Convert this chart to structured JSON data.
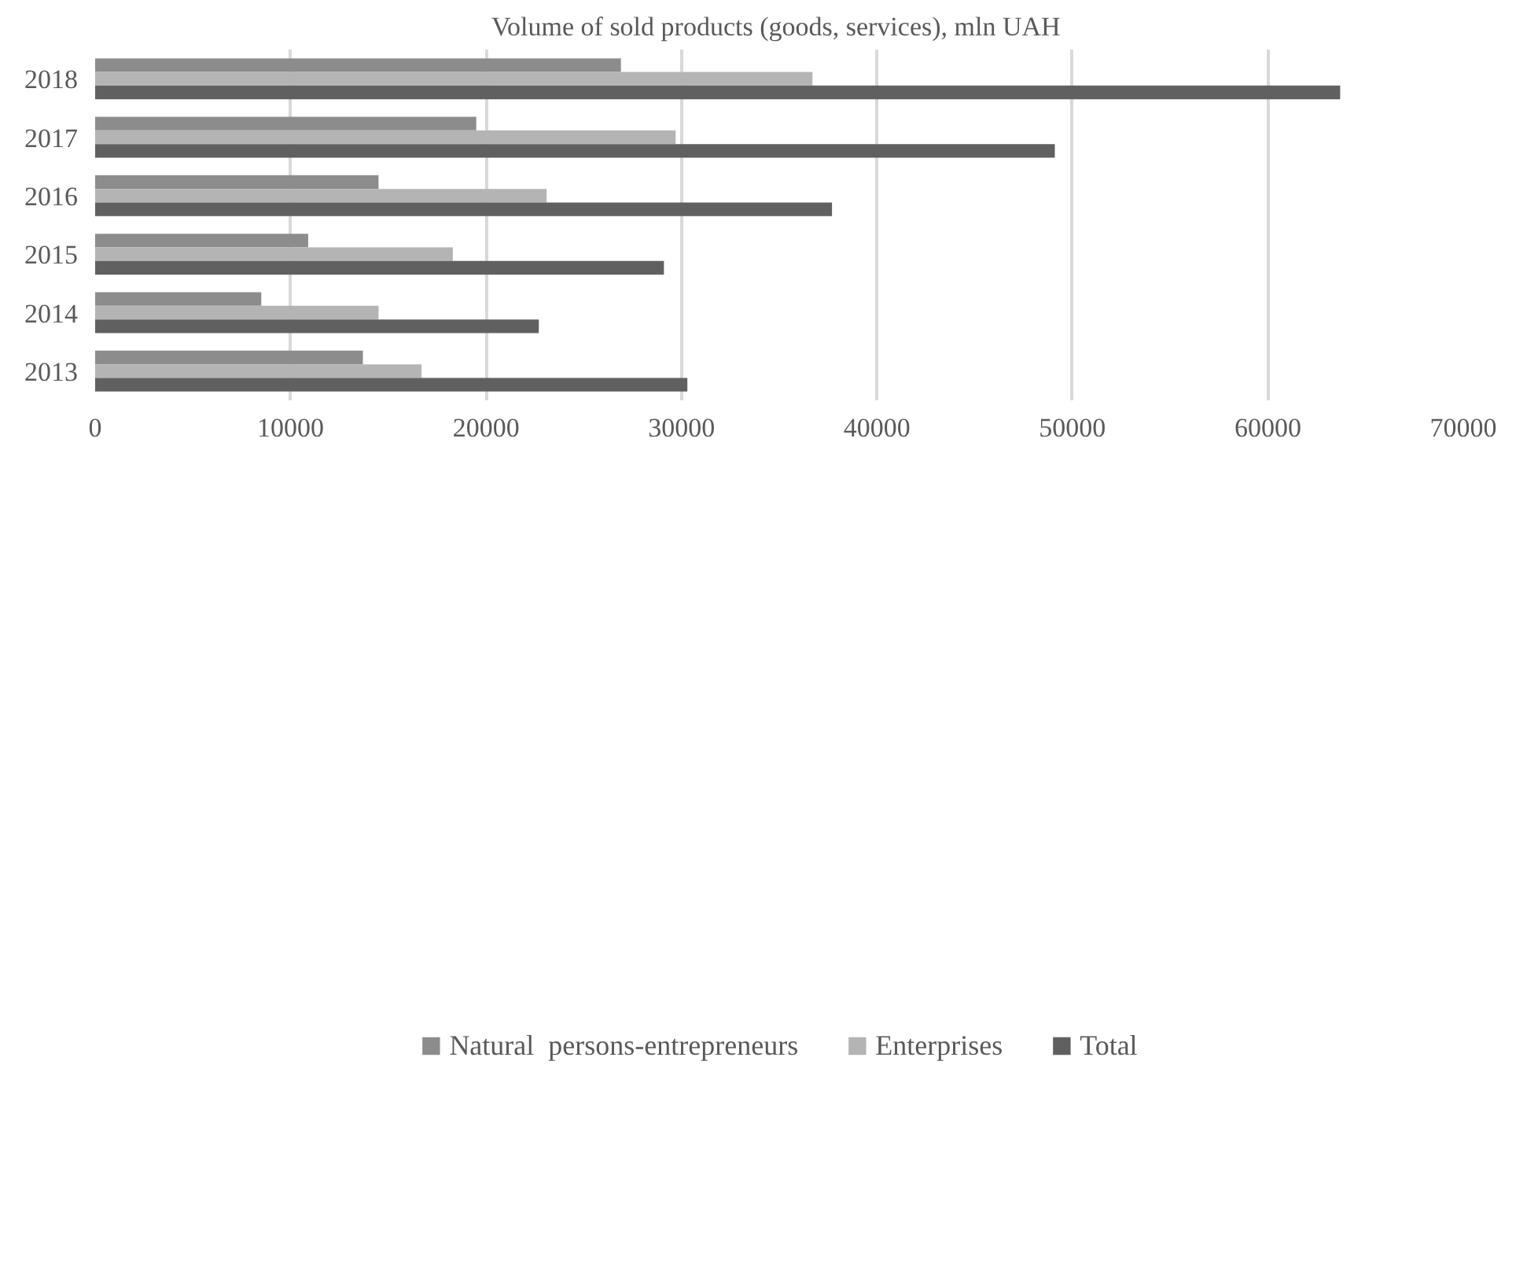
{
  "chart_data": {
    "type": "bar",
    "orientation": "horizontal",
    "title": "Volume of sold products  (goods, services), mln UAH",
    "categories": [
      "2018",
      "2017",
      "2016",
      "2015",
      "2014",
      "2013"
    ],
    "series": [
      {
        "name": "Natural  persons-entrepreneurs",
        "color": "#8c8c8c",
        "values": [
          26900,
          19500,
          14500,
          10900,
          8500,
          13700
        ]
      },
      {
        "name": "Enterprises",
        "color": "#b4b4b4",
        "values": [
          36700,
          29700,
          23100,
          18300,
          14500,
          16700
        ]
      },
      {
        "name": "Total",
        "color": "#606060",
        "values": [
          63700,
          49100,
          37700,
          29100,
          22700,
          30300
        ]
      }
    ],
    "xlim": [
      0,
      70000
    ],
    "xticks": [
      0,
      10000,
      20000,
      30000,
      40000,
      50000,
      60000,
      70000
    ],
    "grid": "x",
    "legend": "bottom"
  }
}
